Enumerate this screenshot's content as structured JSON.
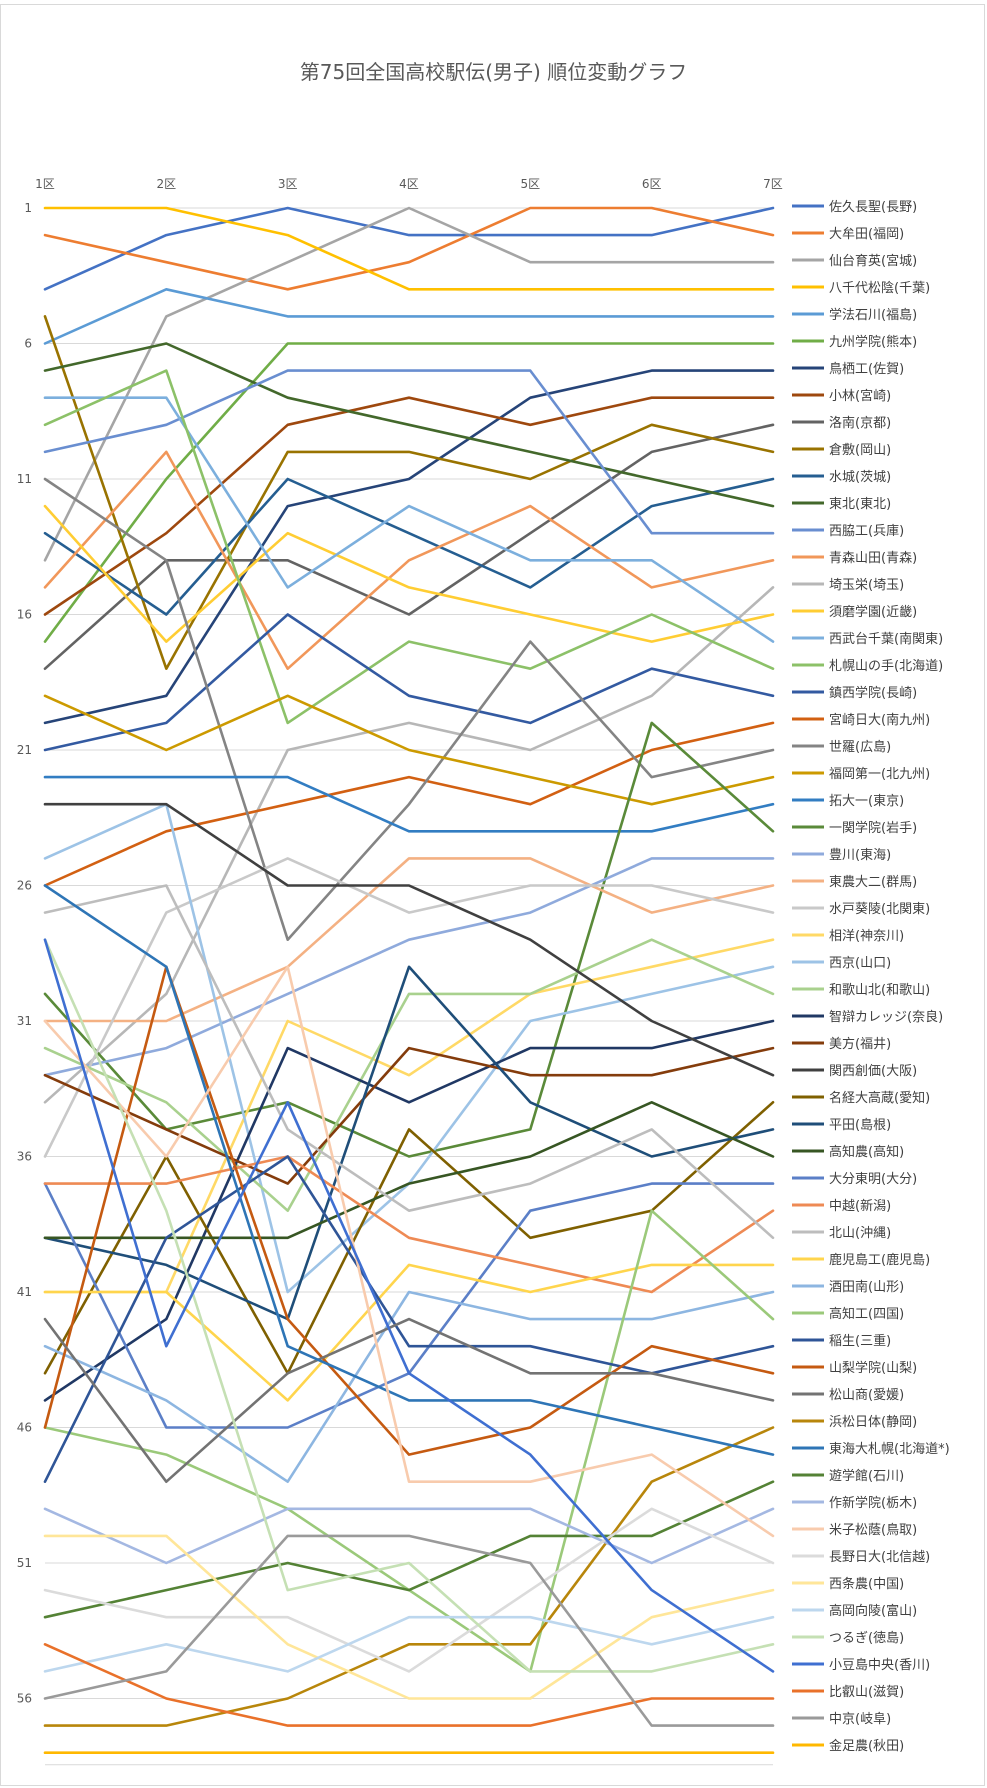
{
  "chart_data": {
    "type": "line",
    "title": "第75回全国高校駅伝(男子) 順位変動グラフ",
    "x": [
      "1区",
      "2区",
      "3区",
      "4区",
      "5区",
      "6区",
      "7区"
    ],
    "yticks": [
      "1",
      "6",
      "11",
      "16",
      "21",
      "26",
      "31",
      "36",
      "41",
      "46",
      "51",
      "56"
    ],
    "ylim": [
      1,
      58
    ],
    "y_inverted": true,
    "grid": true,
    "legend_position": "right",
    "series": [
      {
        "name": "佐久長聖(長野)",
        "color": "#4472C4",
        "values": [
          4,
          2,
          1,
          2,
          2,
          2,
          1
        ]
      },
      {
        "name": "大牟田(福岡)",
        "color": "#ED7D31",
        "values": [
          2,
          3,
          4,
          3,
          1,
          1,
          2
        ]
      },
      {
        "name": "仙台育英(宮城)",
        "color": "#A5A5A5",
        "values": [
          14,
          5,
          3,
          1,
          3,
          3,
          3
        ]
      },
      {
        "name": "八千代松陰(千葉)",
        "color": "#FFC000",
        "values": [
          1,
          1,
          2,
          4,
          4,
          4,
          4
        ]
      },
      {
        "name": "学法石川(福島)",
        "color": "#5B9BD5",
        "values": [
          6,
          4,
          5,
          5,
          5,
          5,
          5
        ]
      },
      {
        "name": "九州学院(熊本)",
        "color": "#70AD47",
        "values": [
          17,
          11,
          6,
          6,
          6,
          6,
          6
        ]
      },
      {
        "name": "鳥栖工(佐賀)",
        "color": "#264478",
        "values": [
          20,
          19,
          12,
          11,
          8,
          7,
          7
        ]
      },
      {
        "name": "小林(宮崎)",
        "color": "#9E480E",
        "values": [
          16,
          13,
          9,
          8,
          9,
          8,
          8
        ]
      },
      {
        "name": "洛南(京都)",
        "color": "#636363",
        "values": [
          18,
          14,
          14,
          16,
          13,
          10,
          9
        ]
      },
      {
        "name": "倉敷(岡山)",
        "color": "#997300",
        "values": [
          5,
          18,
          10,
          10,
          11,
          9,
          10
        ]
      },
      {
        "name": "水城(茨城)",
        "color": "#255E91",
        "values": [
          13,
          16,
          11,
          13,
          15,
          12,
          11
        ]
      },
      {
        "name": "東北(東北)",
        "color": "#43682B",
        "values": [
          7,
          6,
          8,
          9,
          10,
          11,
          12
        ]
      },
      {
        "name": "西脇工(兵庫)",
        "color": "#698ED0",
        "values": [
          10,
          9,
          7,
          7,
          7,
          13,
          13
        ]
      },
      {
        "name": "青森山田(青森)",
        "color": "#F1975A",
        "values": [
          15,
          10,
          18,
          14,
          12,
          15,
          14
        ]
      },
      {
        "name": "埼玉栄(埼玉)",
        "color": "#B7B7B7",
        "values": [
          34,
          30,
          21,
          20,
          21,
          19,
          15
        ]
      },
      {
        "name": "須磨学園(近畿)",
        "color": "#FFCD33",
        "values": [
          12,
          17,
          13,
          15,
          16,
          17,
          16
        ]
      },
      {
        "name": "西武台千葉(南関東)",
        "color": "#7CAFDD",
        "values": [
          8,
          8,
          15,
          12,
          14,
          14,
          17
        ]
      },
      {
        "name": "札幌山の手(北海道)",
        "color": "#8CC168",
        "values": [
          9,
          7,
          20,
          17,
          18,
          16,
          18
        ]
      },
      {
        "name": "鎮西学院(長崎)",
        "color": "#335AA1",
        "values": [
          21,
          20,
          16,
          19,
          20,
          18,
          19
        ]
      },
      {
        "name": "宮崎日大(南九州)",
        "color": "#D26012",
        "values": [
          26,
          24,
          23,
          22,
          23,
          21,
          20
        ]
      },
      {
        "name": "世羅(広島)",
        "color": "#848484",
        "values": [
          11,
          14,
          28,
          23,
          17,
          22,
          21
        ]
      },
      {
        "name": "福岡第一(北九州)",
        "color": "#CC9A00",
        "values": [
          19,
          21,
          19,
          21,
          22,
          23,
          22
        ]
      },
      {
        "name": "拓大一(東京)",
        "color": "#327DC2",
        "values": [
          22,
          22,
          22,
          24,
          24,
          24,
          23
        ]
      },
      {
        "name": "一関学院(岩手)",
        "color": "#5A8A39",
        "values": [
          30,
          35,
          34,
          36,
          35,
          20,
          24
        ]
      },
      {
        "name": "豊川(東海)",
        "color": "#8FAADC",
        "values": [
          33,
          32,
          30,
          28,
          27,
          25,
          25
        ]
      },
      {
        "name": "東農大二(群馬)",
        "color": "#F4B183",
        "values": [
          31,
          31,
          29,
          25,
          25,
          27,
          26
        ]
      },
      {
        "name": "水戸葵陵(北関東)",
        "color": "#C9C9C9",
        "values": [
          36,
          27,
          25,
          27,
          26,
          26,
          27
        ]
      },
      {
        "name": "相洋(神奈川)",
        "color": "#FFD966",
        "values": [
          41,
          41,
          31,
          33,
          30,
          29,
          28
        ]
      },
      {
        "name": "西京(山口)",
        "color": "#9DC3E6",
        "values": [
          25,
          23,
          41,
          37,
          31,
          30,
          29
        ]
      },
      {
        "name": "和歌山北(和歌山)",
        "color": "#A9D18E",
        "values": [
          32,
          34,
          38,
          30,
          30,
          28,
          30
        ]
      },
      {
        "name": "智辯カレッジ(奈良)",
        "color": "#203864",
        "values": [
          45,
          42,
          32,
          34,
          32,
          32,
          31
        ]
      },
      {
        "name": "美方(福井)",
        "color": "#843C0C",
        "values": [
          33,
          35,
          37,
          32,
          33,
          33,
          32
        ]
      },
      {
        "name": "関西創価(大阪)",
        "color": "#404040",
        "values": [
          23,
          23,
          26,
          26,
          28,
          31,
          33
        ]
      },
      {
        "name": "名経大高蔵(愛知)",
        "color": "#7F6000",
        "values": [
          44,
          36,
          44,
          35,
          39,
          38,
          34
        ]
      },
      {
        "name": "平田(島根)",
        "color": "#1F4E79",
        "values": [
          39,
          40,
          42,
          29,
          34,
          36,
          35
        ]
      },
      {
        "name": "高知農(高知)",
        "color": "#375623",
        "values": [
          39,
          39,
          39,
          37,
          36,
          34,
          36
        ]
      },
      {
        "name": "大分東明(大分)",
        "color": "#5B7FC7",
        "values": [
          37,
          46,
          46,
          44,
          38,
          37,
          37
        ]
      },
      {
        "name": "中越(新潟)",
        "color": "#EE8A54",
        "values": [
          37,
          37,
          36,
          39,
          40,
          41,
          38
        ]
      },
      {
        "name": "北山(沖縄)",
        "color": "#BDBDBD",
        "values": [
          27,
          26,
          35,
          38,
          37,
          35,
          39
        ]
      },
      {
        "name": "鹿児島工(鹿児島)",
        "color": "#FFD54D",
        "values": [
          41,
          41,
          45,
          40,
          41,
          40,
          40
        ]
      },
      {
        "name": "酒田南(山形)",
        "color": "#8DB6E1",
        "values": [
          43,
          45,
          48,
          41,
          42,
          42,
          41
        ]
      },
      {
        "name": "高知工(四国)",
        "color": "#9BC97A",
        "values": [
          46,
          47,
          49,
          52,
          55,
          38,
          42
        ]
      },
      {
        "name": "稲生(三重)",
        "color": "#2F5597",
        "values": [
          48,
          39,
          36,
          43,
          43,
          44,
          43
        ]
      },
      {
        "name": "山梨学院(山梨)",
        "color": "#C55A11",
        "values": [
          46,
          29,
          42,
          47,
          46,
          43,
          44
        ]
      },
      {
        "name": "松山商(愛媛)",
        "color": "#737373",
        "values": [
          42,
          48,
          44,
          42,
          44,
          44,
          45
        ]
      },
      {
        "name": "浜松日体(静岡)",
        "color": "#B8860B",
        "values": [
          57,
          57,
          56,
          54,
          54,
          48,
          46
        ]
      },
      {
        "name": "東海大札幌(北海道*)",
        "color": "#2E75B6",
        "values": [
          26,
          29,
          43,
          45,
          45,
          46,
          47
        ]
      },
      {
        "name": "遊学館(石川)",
        "color": "#548235",
        "values": [
          53,
          52,
          51,
          52,
          50,
          50,
          48
        ]
      },
      {
        "name": "作新学院(栃木)",
        "color": "#A4B8E2",
        "values": [
          49,
          51,
          49,
          49,
          49,
          51,
          49
        ]
      },
      {
        "name": "米子松蔭(鳥取)",
        "color": "#F8CBAD",
        "values": [
          31,
          36,
          29,
          48,
          48,
          47,
          50
        ]
      },
      {
        "name": "長野日大(北信越)",
        "color": "#DBDBDB",
        "values": [
          52,
          53,
          53,
          55,
          52,
          49,
          51
        ]
      },
      {
        "name": "西条農(中国)",
        "color": "#FFE699",
        "values": [
          50,
          50,
          54,
          56,
          56,
          53,
          52
        ]
      },
      {
        "name": "高岡向陵(富山)",
        "color": "#BDD7EE",
        "values": [
          55,
          54,
          55,
          53,
          53,
          54,
          53
        ]
      },
      {
        "name": "つるぎ(徳島)",
        "color": "#C5E0B4",
        "values": [
          28,
          38,
          52,
          51,
          55,
          55,
          54
        ]
      },
      {
        "name": "小豆島中央(香川)",
        "color": "#3F6FD1",
        "values": [
          28,
          43,
          34,
          44,
          47,
          52,
          55
        ]
      },
      {
        "name": "比叡山(滋賀)",
        "color": "#E9712A",
        "values": [
          54,
          56,
          57,
          57,
          57,
          56,
          56
        ]
      },
      {
        "name": "中京(岐阜)",
        "color": "#9A9A9A",
        "values": [
          56,
          55,
          50,
          50,
          51,
          57,
          57
        ]
      },
      {
        "name": "金足農(秋田)",
        "color": "#FFB800",
        "values": [
          58,
          58,
          58,
          58,
          58,
          58,
          58
        ]
      }
    ]
  }
}
